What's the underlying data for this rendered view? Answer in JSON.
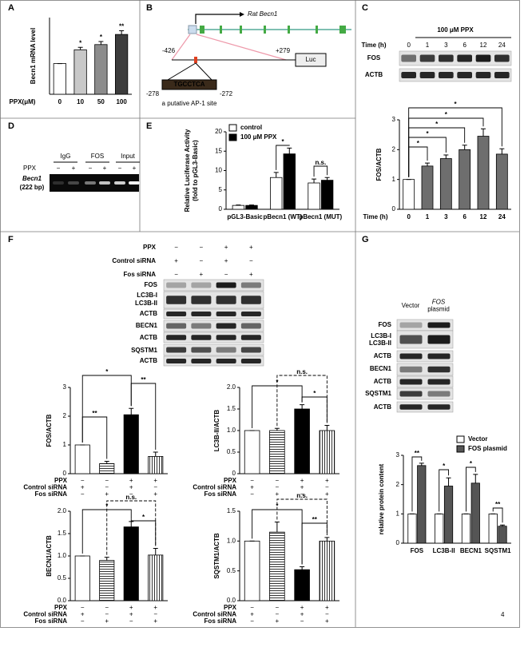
{
  "chart_data": [
    {
      "type": "bar",
      "ylabel": "Becn1 mRNA level",
      "xlabel": "PPX(μM)",
      "categories": [
        "0",
        "10",
        "50",
        "100"
      ],
      "values": [
        1,
        1.45,
        1.62,
        1.95
      ],
      "errors": [
        0,
        0.08,
        0.1,
        0.12
      ],
      "colors": [
        "#ffffff",
        "#c8c8c8",
        "#8c8c8c",
        "#3c3c3c"
      ],
      "ylim": [
        0,
        2.5
      ],
      "annotations": [
        "*",
        "*",
        "**"
      ]
    },
    {
      "type": "bar",
      "ylabel": "FOS/ACTB",
      "xlabel": "Time (h)",
      "categories": [
        "0",
        "1",
        "3",
        "6",
        "12",
        "24"
      ],
      "values": [
        1,
        1.45,
        1.7,
        2.0,
        2.45,
        1.85
      ],
      "errors": [
        0,
        0.1,
        0.12,
        0.15,
        0.25,
        0.18
      ],
      "colors": [
        "#ffffff",
        "#6e6e6e",
        "#6e6e6e",
        "#6e6e6e",
        "#6e6e6e",
        "#6e6e6e"
      ],
      "ylim": [
        0,
        3
      ],
      "yticks": [
        0,
        1,
        2,
        3
      ],
      "annotations": [
        "*",
        "*",
        "*",
        "*",
        "*"
      ]
    },
    {
      "type": "bar",
      "ylabel": [
        "Relative Luciferase Activity",
        "(fold to pGL3-Basic)"
      ],
      "categories": [
        "pGL3-Basic",
        "pBecn1 (WT)",
        "pBecn1 (MUT)"
      ],
      "series": [
        {
          "name": "control",
          "color": "#ffffff",
          "values": [
            1,
            8.2,
            6.8
          ],
          "errors": [
            0.1,
            1.3,
            1.0
          ]
        },
        {
          "name": "100 μM PPX",
          "color": "#000000",
          "values": [
            1,
            14.3,
            7.5
          ],
          "errors": [
            0.1,
            1.5,
            0.7
          ]
        }
      ],
      "legend": "upper left",
      "ylim": [
        0,
        20
      ],
      "yticks": [
        0,
        5,
        10,
        15,
        20
      ],
      "annotations": [
        "*",
        "n.s."
      ]
    },
    {
      "type": "bar",
      "ylabel": "FOS/ACTB",
      "categories": [
        null,
        null,
        null,
        null
      ],
      "values": [
        1,
        0.35,
        2.05,
        0.6
      ],
      "errors": [
        0,
        0.08,
        0.22,
        0.15
      ],
      "colors": [
        "#ffffff",
        "#ffffff",
        "#000000",
        "#ffffff"
      ],
      "hatches": [
        null,
        "horizontal",
        null,
        "vertical"
      ],
      "ylim": [
        0,
        3
      ],
      "yticks": [
        0,
        1,
        2,
        3
      ],
      "conditions": [
        {
          "name": "PPX",
          "values": [
            "−",
            "−",
            "+",
            "+"
          ]
        },
        {
          "name": "Control siRNA",
          "values": [
            "+",
            "−",
            "+",
            "−"
          ]
        },
        {
          "name": "Fos siRNA",
          "values": [
            "−",
            "+",
            "−",
            "+"
          ]
        }
      ],
      "annotations": [
        "*",
        "**",
        "**"
      ]
    },
    {
      "type": "bar",
      "ylabel": "LC3B-II/ACTB",
      "categories": [
        null,
        null,
        null,
        null
      ],
      "values": [
        1,
        1,
        1.5,
        1.0
      ],
      "errors": [
        0,
        0.05,
        0.1,
        0.12
      ],
      "colors": [
        "#ffffff",
        "#ffffff",
        "#000000",
        "#ffffff"
      ],
      "hatches": [
        null,
        "horizontal",
        null,
        "vertical"
      ],
      "ylim": [
        0,
        2
      ],
      "yticks": [
        0,
        0.5,
        {
          "value": 1,
          "label": "1.0"
        },
        1.5,
        {
          "value": 2,
          "label": "2.0"
        }
      ],
      "conditions": [
        {
          "name": "PPX",
          "values": [
            "−",
            "−",
            "+",
            "+"
          ]
        },
        {
          "name": "Control siRNA",
          "values": [
            "+",
            "−",
            "+",
            "−"
          ]
        },
        {
          "name": "Fos siRNA",
          "values": [
            "−",
            "+",
            "−",
            "+"
          ]
        }
      ],
      "annotations": [
        "n.s.",
        "*",
        "*"
      ]
    },
    {
      "type": "bar",
      "ylabel": "BECN1/ACTB",
      "categories": [
        null,
        null,
        null,
        null
      ],
      "values": [
        1,
        0.9,
        1.65,
        1.02
      ],
      "errors": [
        0,
        0.07,
        0.12,
        0.15
      ],
      "colors": [
        "#ffffff",
        "#ffffff",
        "#000000",
        "#ffffff"
      ],
      "hatches": [
        null,
        "horizontal",
        null,
        "vertical"
      ],
      "ylim": [
        0,
        2
      ],
      "yticks": [
        {
          "value": 0,
          "label": "0.0"
        },
        0.5,
        {
          "value": 1,
          "label": "1.0"
        },
        1.5,
        {
          "value": 2,
          "label": "2.0"
        }
      ],
      "conditions": [
        {
          "name": "PPX",
          "values": [
            "−",
            "−",
            "+",
            "+"
          ]
        },
        {
          "name": "Control siRNA",
          "values": [
            "+",
            "−",
            "+",
            "−"
          ]
        },
        {
          "name": "Fos siRNA",
          "values": [
            "−",
            "+",
            "−",
            "+"
          ]
        }
      ],
      "annotations": [
        "n.s.",
        "*",
        "*"
      ]
    },
    {
      "type": "bar",
      "ylabel": "SQSTM1/ACTB",
      "categories": [
        null,
        null,
        null,
        null
      ],
      "values": [
        1,
        1.15,
        0.52,
        1.0
      ],
      "errors": [
        0,
        0.17,
        0.05,
        0.06
      ],
      "colors": [
        "#ffffff",
        "#ffffff",
        "#000000",
        "#ffffff"
      ],
      "hatches": [
        null,
        "horizontal",
        null,
        "vertical"
      ],
      "ylim": [
        0,
        1.5
      ],
      "yticks": [
        {
          "value": 0,
          "label": "0.0"
        },
        0.5,
        {
          "value": 1,
          "label": "1.0"
        },
        1.5
      ],
      "conditions": [
        {
          "name": "PPX",
          "values": [
            "−",
            "−",
            "+",
            "+"
          ]
        },
        {
          "name": "Control siRNA",
          "values": [
            "+",
            "−",
            "+",
            "−"
          ]
        },
        {
          "name": "Fos siRNA",
          "values": [
            "−",
            "+",
            "−",
            "+"
          ]
        }
      ],
      "annotations": [
        "n.s.",
        "*",
        "**"
      ]
    },
    {
      "type": "bar",
      "ylabel": "relative protein content",
      "categories": [
        "FOS",
        "LC3B-II",
        "BECN1",
        "SQSTM1"
      ],
      "series": [
        {
          "name": "Vector",
          "color": "#ffffff",
          "values": [
            1,
            1,
            1,
            1
          ],
          "errors": [
            0,
            0,
            0,
            0
          ]
        },
        {
          "name": "FOS plasmid",
          "color": "#555555",
          "values": [
            2.65,
            1.95,
            2.05,
            0.58
          ],
          "errors": [
            0.08,
            0.28,
            0.3,
            0.04
          ]
        }
      ],
      "legend": "upper right",
      "ylim": [
        0,
        3
      ],
      "yticks": [
        0,
        1,
        2,
        3
      ],
      "annotations": [
        "**",
        "*",
        "*",
        "**"
      ]
    }
  ],
  "panels": {
    "labels": [
      "A",
      "B",
      "C",
      "D",
      "E",
      "F",
      "G"
    ],
    "B": {
      "gene": "Rat Becn1",
      "start": "-426",
      "end": "+279",
      "reporter": "Luc",
      "site_start": "-278",
      "site_end": "-272",
      "site_seq": "TGCCTCA",
      "site_note": "a putative AP-1 site"
    },
    "C": {
      "treatment": "100 μM PPX",
      "time_label": "Time (h)",
      "times": [
        "0",
        "1",
        "3",
        "6",
        "12",
        "24"
      ],
      "rows": [
        "FOS",
        "ACTB"
      ]
    },
    "D": {
      "groups": [
        "IgG",
        "FOS",
        "Input"
      ],
      "treatment": "PPX",
      "signs": [
        "−",
        "+",
        "−",
        "+",
        "−",
        "+"
      ],
      "gene": "Becn1",
      "size": "(222 bp)"
    },
    "F": {
      "conditions": [
        {
          "name": "PPX",
          "values": [
            "−",
            "−",
            "+",
            "+"
          ]
        },
        {
          "name": "Control siRNA",
          "values": [
            "+",
            "−",
            "+",
            "−"
          ]
        },
        {
          "name": "Fos siRNA",
          "values": [
            "−",
            "+",
            "−",
            "+"
          ]
        }
      ],
      "rows": [
        "FOS",
        "LC3B-I",
        "LC3B-II",
        "ACTB",
        "BECN1",
        "ACTB",
        "SQSTM1",
        "ACTB"
      ]
    },
    "G": {
      "columns": [
        [
          "Vector"
        ],
        [
          "FOS",
          "plasmid"
        ]
      ],
      "rows": [
        "FOS",
        "LC3B-I",
        "LC3B-II",
        "ACTB",
        "BECN1",
        "ACTB",
        "SQSTM1",
        "ACTB"
      ]
    },
    "page_number": "4"
  }
}
